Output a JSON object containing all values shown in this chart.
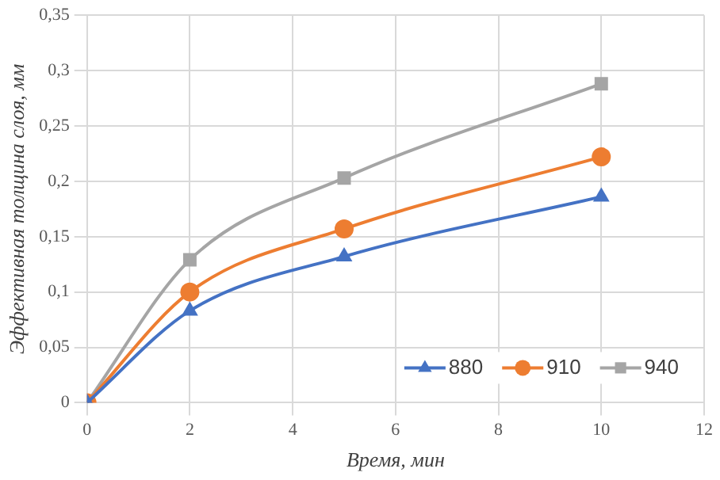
{
  "chart_data": {
    "type": "line",
    "xlabel": "Время, мин",
    "ylabel": "Эффективная толщина слоя, мм",
    "x": [
      0,
      2,
      5,
      10
    ],
    "series": [
      {
        "name": "880",
        "color": "#4472c4",
        "marker": "triangle",
        "values": [
          0,
          0.083,
          0.132,
          0.186
        ]
      },
      {
        "name": "910",
        "color": "#ed7d31",
        "marker": "circle",
        "values": [
          0,
          0.1,
          0.157,
          0.222
        ]
      },
      {
        "name": "940",
        "color": "#a5a5a5",
        "marker": "square",
        "values": [
          0,
          0.129,
          0.203,
          0.288
        ]
      }
    ],
    "xlim": [
      0,
      12
    ],
    "xticks": [
      0,
      2,
      4,
      6,
      8,
      10,
      12
    ],
    "ylim": [
      0,
      0.35
    ],
    "yticks": [
      0,
      {
        "value": 0.05,
        "label": "0,05"
      },
      {
        "value": 0.1,
        "label": "0,1"
      },
      {
        "value": 0.15,
        "label": "0,15"
      },
      {
        "value": 0.2,
        "label": "0,2"
      },
      {
        "value": 0.25,
        "label": "0,25"
      },
      {
        "value": 0.3,
        "label": "0,3"
      },
      {
        "value": 0.35,
        "label": "0,35"
      }
    ],
    "grid": true,
    "legend": "bottom right",
    "line_style": "solid"
  }
}
